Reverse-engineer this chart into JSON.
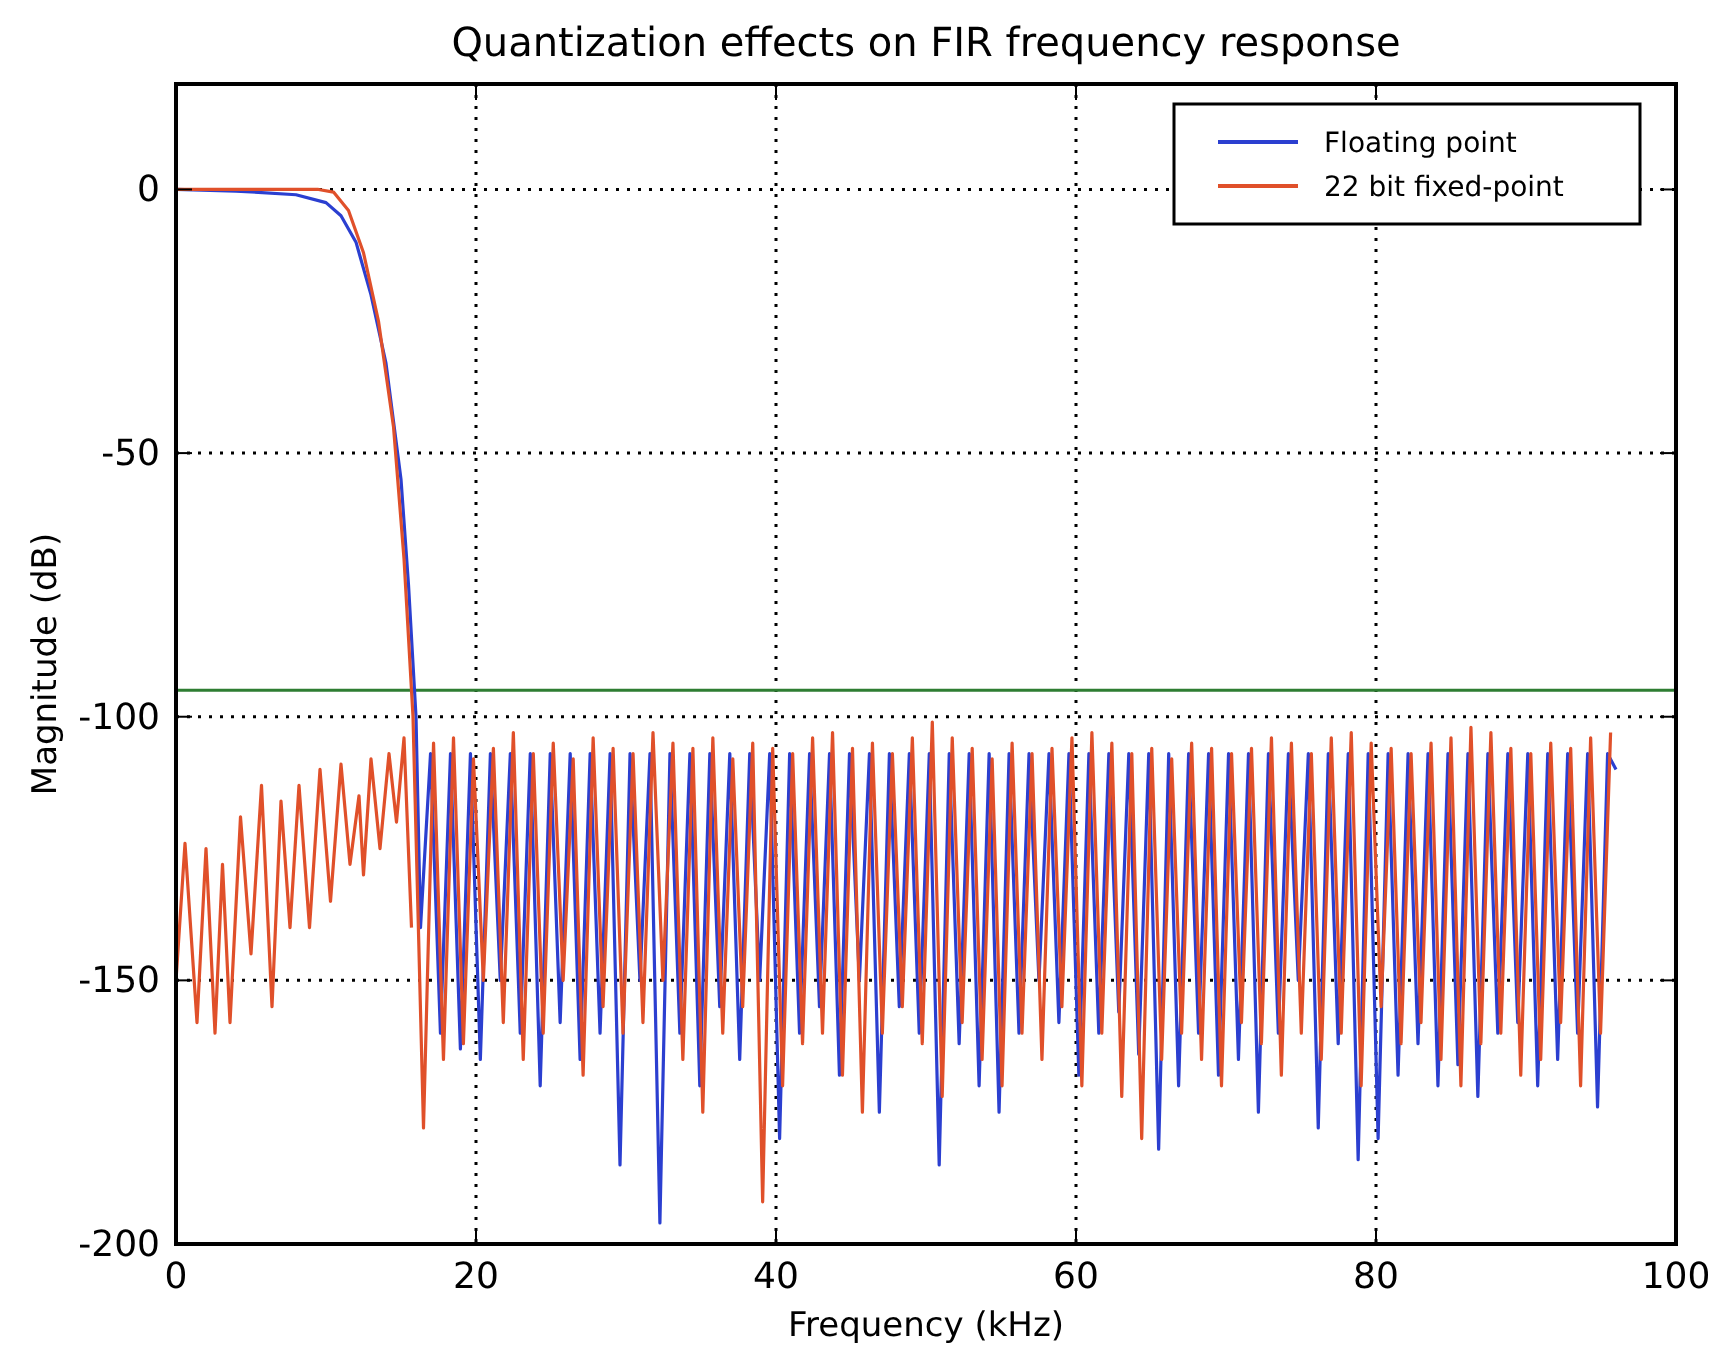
{
  "chart_data": {
    "type": "line",
    "title": "Quantization effects on FIR frequency response",
    "xlabel": "Frequency (kHz)",
    "ylabel": "Magnitude (dB)",
    "xlim": [
      0,
      100
    ],
    "ylim": [
      -200,
      20
    ],
    "xticks": [
      0,
      20,
      40,
      60,
      80,
      100
    ],
    "yticks": [
      -200,
      -150,
      -100,
      -50,
      0
    ],
    "grid": true,
    "legend": "top right",
    "line_style": "solid",
    "marker": "none",
    "ref_lines": [
      {
        "axis": "y",
        "value": -95,
        "color": "#2e7d32"
      }
    ],
    "series": [
      {
        "name": "Floating point",
        "color": "#2b3fd0",
        "x": [
          0,
          4,
          8,
          10,
          11,
          12,
          13,
          14,
          15,
          15.5,
          16,
          16.3,
          16.97,
          17.63,
          18.3,
          18.96,
          19.63,
          20.29,
          20.96,
          21.62,
          22.29,
          22.95,
          23.62,
          24.28,
          24.95,
          25.61,
          26.28,
          26.94,
          27.61,
          28.27,
          28.94,
          29.6,
          30.27,
          30.93,
          31.6,
          32.26,
          32.93,
          33.59,
          34.26,
          34.92,
          35.59,
          36.25,
          36.92,
          37.58,
          38.25,
          38.91,
          39.58,
          40.24,
          40.91,
          41.57,
          42.24,
          42.9,
          43.57,
          44.23,
          44.9,
          45.56,
          46.23,
          46.89,
          47.56,
          48.22,
          48.89,
          49.55,
          50.22,
          50.88,
          51.55,
          52.21,
          52.88,
          53.54,
          54.21,
          54.87,
          55.54,
          56.2,
          56.87,
          57.53,
          58.2,
          58.86,
          59.53,
          60.19,
          60.86,
          61.52,
          62.19,
          62.85,
          63.52,
          64.18,
          64.85,
          65.51,
          66.18,
          66.84,
          67.51,
          68.17,
          68.84,
          69.5,
          70.17,
          70.83,
          71.5,
          72.16,
          72.83,
          73.49,
          74.16,
          74.82,
          75.49,
          76.15,
          76.82,
          77.48,
          78.15,
          78.81,
          79.48,
          80.14,
          80.81,
          81.47,
          82.14,
          82.8,
          83.47,
          84.13,
          84.8,
          85.46,
          86.13,
          86.79,
          87.46,
          88.12,
          88.79,
          89.45,
          90.12,
          90.78,
          91.45,
          92.11,
          92.78,
          93.44,
          94.11,
          94.77,
          95.44,
          96
        ],
        "values": [
          0,
          -0.3,
          -1,
          -2.5,
          -5,
          -10,
          -20,
          -33,
          -55,
          -75,
          -100,
          -140,
          -107,
          -160,
          -107,
          -163,
          -107,
          -165,
          -107,
          -150,
          -107,
          -160,
          -107,
          -170,
          -107,
          -158,
          -107,
          -165,
          -107,
          -160,
          -107,
          -185,
          -107,
          -150,
          -107,
          -196,
          -107,
          -160,
          -107,
          -170,
          -107,
          -155,
          -107,
          -165,
          -107,
          -150,
          -107,
          -180,
          -107,
          -160,
          -107,
          -155,
          -107,
          -168,
          -107,
          -150,
          -107,
          -175,
          -107,
          -155,
          -107,
          -160,
          -107,
          -185,
          -107,
          -162,
          -107,
          -170,
          -107,
          -175,
          -107,
          -160,
          -107,
          -150,
          -107,
          -158,
          -107,
          -168,
          -107,
          -160,
          -107,
          -156,
          -107,
          -164,
          -107,
          -182,
          -107,
          -170,
          -107,
          -160,
          -107,
          -168,
          -107,
          -165,
          -107,
          -175,
          -107,
          -160,
          -107,
          -150,
          -107,
          -178,
          -107,
          -162,
          -107,
          -184,
          -107,
          -180,
          -107,
          -168,
          -107,
          -162,
          -107,
          -170,
          -107,
          -166,
          -107,
          -172,
          -107,
          -160,
          -107,
          -158,
          -107,
          -170,
          -107,
          -165,
          -107,
          -160,
          -107,
          -174,
          -107,
          -110
        ]
      },
      {
        "name": "22 bit fixed-point",
        "color": "#e0502a",
        "x": [
          0,
          9.5,
          10.5,
          11.5,
          12.5,
          13.5,
          14.5,
          15.2,
          15.8,
          16.5,
          17.17,
          17.83,
          18.5,
          19.16,
          19.83,
          20.49,
          21.16,
          21.82,
          22.49,
          23.15,
          23.82,
          24.48,
          25.15,
          25.81,
          26.48,
          27.14,
          27.81,
          28.47,
          29.14,
          29.8,
          30.47,
          31.13,
          31.8,
          32.46,
          33.13,
          33.79,
          34.46,
          35.12,
          35.79,
          36.45,
          37.12,
          37.78,
          38.45,
          39.11,
          39.78,
          40.44,
          41.11,
          41.77,
          42.44,
          43.1,
          43.77,
          44.43,
          45.1,
          45.76,
          46.43,
          47.09,
          47.76,
          48.42,
          49.09,
          49.75,
          50.42,
          51.08,
          51.75,
          52.41,
          53.08,
          53.74,
          54.41,
          55.07,
          55.74,
          56.4,
          57.07,
          57.73,
          58.4,
          59.06,
          59.73,
          60.39,
          61.06,
          61.72,
          62.39,
          63.05,
          63.72,
          64.38,
          65.05,
          65.71,
          66.38,
          67.04,
          67.71,
          68.37,
          69.04,
          69.7,
          70.37,
          71.03,
          71.7,
          72.36,
          73.03,
          73.69,
          74.36,
          75.02,
          75.69,
          76.35,
          77.02,
          77.68,
          78.35,
          79.01,
          79.68,
          80.34,
          81.01,
          81.67,
          82.34,
          83,
          83.67,
          84.33,
          85,
          85.66,
          86.33,
          86.99,
          87.66,
          88.32,
          88.99,
          89.65,
          90.32,
          90.98,
          91.65,
          92.31,
          92.98,
          93.64,
          94.31,
          94.97,
          95.64
        ],
        "values": [
          0,
          0,
          -0.5,
          -4,
          -12,
          -25,
          -45,
          -70,
          -100,
          -178,
          -105,
          -165,
          -104,
          -162,
          -108,
          -150,
          -106,
          -158,
          -103,
          -165,
          -107,
          -160,
          -105,
          -150,
          -108,
          -168,
          -104,
          -155,
          -106,
          -160,
          -107,
          -158,
          -103,
          -150,
          -105,
          -165,
          -106,
          -175,
          -104,
          -160,
          -108,
          -155,
          -105,
          -192,
          -106,
          -170,
          -107,
          -162,
          -104,
          -160,
          -103,
          -168,
          -106,
          -175,
          -105,
          -160,
          -107,
          -155,
          -104,
          -162,
          -101,
          -172,
          -104,
          -158,
          -106,
          -165,
          -108,
          -170,
          -105,
          -160,
          -107,
          -165,
          -106,
          -155,
          -104,
          -170,
          -103,
          -160,
          -105,
          -172,
          -107,
          -180,
          -106,
          -165,
          -108,
          -160,
          -105,
          -165,
          -106,
          -170,
          -107,
          -158,
          -106,
          -162,
          -104,
          -168,
          -105,
          -160,
          -107,
          -165,
          -104,
          -160,
          -103,
          -170,
          -105,
          -155,
          -106,
          -162,
          -107,
          -158,
          -105,
          -165,
          -104,
          -170,
          -102,
          -162,
          -103,
          -160,
          -106,
          -168,
          -107,
          -165,
          -105,
          -158,
          -106,
          -170,
          -104,
          -160,
          -103
        ]
      },
      {
        "color": "#e0502a",
        "x": [
          0,
          0.6,
          1.4,
          2.0,
          2.6,
          3.1,
          3.6,
          4.3,
          5.0,
          5.7,
          6.4,
          7.0,
          7.6,
          8.2,
          8.9,
          9.6,
          10.3,
          11.0,
          11.6,
          12.2,
          12.5,
          13.0,
          13.6,
          14.2,
          14.7,
          15.2,
          15.7
        ],
        "values": [
          -150,
          -124,
          -158,
          -125,
          -160,
          -128,
          -158,
          -119,
          -145,
          -113,
          -155,
          -116,
          -140,
          -113,
          -140,
          -110,
          -135,
          -109,
          -128,
          -115,
          -130,
          -108,
          -125,
          -107,
          -120,
          -104,
          -140
        ]
      }
    ]
  }
}
